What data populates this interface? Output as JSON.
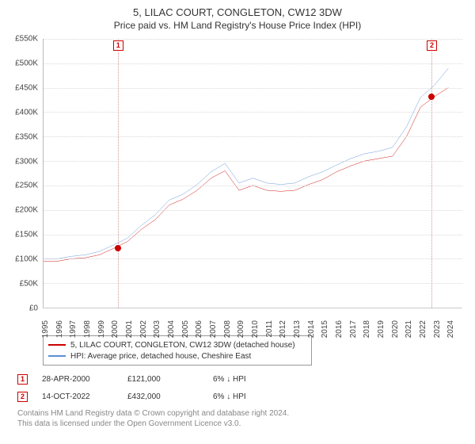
{
  "title": "5, LILAC COURT, CONGLETON, CW12 3DW",
  "subtitle": "Price paid vs. HM Land Registry's House Price Index (HPI)",
  "chart": {
    "type": "line",
    "x_years": [
      1995,
      1996,
      1997,
      1998,
      1999,
      2000,
      2001,
      2002,
      2003,
      2004,
      2005,
      2006,
      2007,
      2008,
      2009,
      2010,
      2011,
      2012,
      2013,
      2014,
      2015,
      2016,
      2017,
      2018,
      2019,
      2020,
      2021,
      2022,
      2023,
      2024
    ],
    "xlim": [
      1995,
      2025
    ],
    "ylim": [
      0,
      550
    ],
    "ytick_step": 50,
    "ytick_labels": [
      "£0",
      "£50K",
      "£100K",
      "£150K",
      "£200K",
      "£250K",
      "£300K",
      "£350K",
      "£400K",
      "£450K",
      "£500K",
      "£550K"
    ],
    "grid_color": "#d8d8d8",
    "background_color": "#ffffff",
    "series": {
      "property": {
        "label": "5, LILAC COURT, CONGLETON, CW12 3DW (detached house)",
        "color": "#cc0000",
        "width": 1.4,
        "values_k": [
          95,
          95,
          100,
          102,
          108,
          121,
          135,
          160,
          180,
          210,
          222,
          240,
          265,
          280,
          240,
          250,
          240,
          238,
          240,
          252,
          262,
          278,
          290,
          300,
          305,
          310,
          350,
          410,
          432,
          450
        ]
      },
      "hpi": {
        "label": "HPI: Average price, detached house, Cheshire East",
        "color": "#5b8fd6",
        "width": 1.4,
        "values_k": [
          100,
          100,
          105,
          108,
          115,
          128,
          142,
          168,
          190,
          220,
          232,
          252,
          278,
          295,
          255,
          265,
          255,
          252,
          255,
          268,
          278,
          292,
          305,
          315,
          320,
          328,
          370,
          430,
          455,
          490
        ]
      }
    },
    "markers": [
      {
        "n": "1",
        "year": 2000.32,
        "value_k": 121
      },
      {
        "n": "2",
        "year": 2022.79,
        "value_k": 432
      }
    ]
  },
  "legend": {
    "row1_color": "#cc0000",
    "row2_color": "#5b8fd6"
  },
  "datapoints": [
    {
      "n": "1",
      "date": "28-APR-2000",
      "price": "£121,000",
      "delta": "6% ↓ HPI"
    },
    {
      "n": "2",
      "date": "14-OCT-2022",
      "price": "£432,000",
      "delta": "6% ↓ HPI"
    }
  ],
  "footnote1": "Contains HM Land Registry data © Crown copyright and database right 2024.",
  "footnote2": "This data is licensed under the Open Government Licence v3.0."
}
